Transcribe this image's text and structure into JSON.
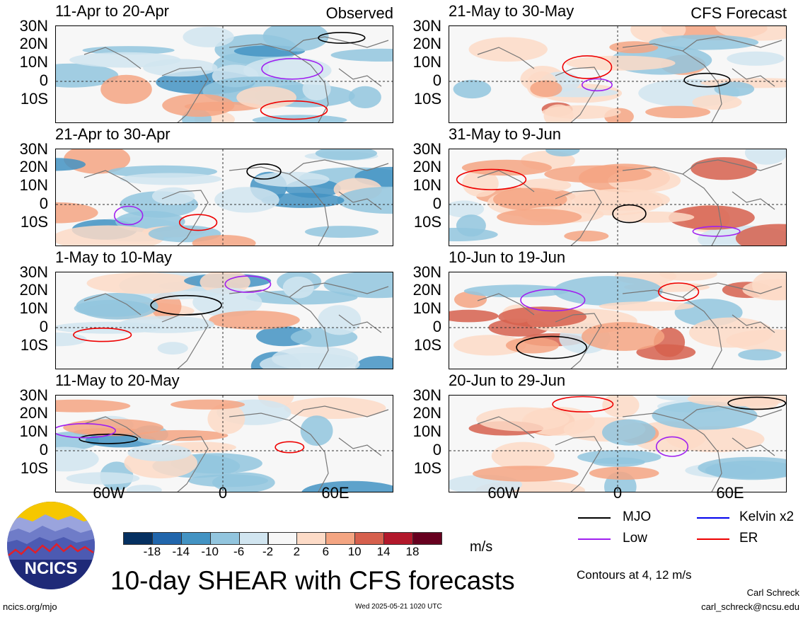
{
  "chart_data": {
    "type": "heatmap",
    "title": "10-day SHEAR with CFS forecasts",
    "columns": [
      "Observed",
      "CFS Forecast"
    ],
    "lat_ticks": [
      "30N",
      "20N",
      "10N",
      "0",
      "10S"
    ],
    "lon_ticks": [
      "60W",
      "0",
      "60E"
    ],
    "panels": [
      {
        "period": "11-Apr to 20-Apr",
        "column": "Observed"
      },
      {
        "period": "21-Apr to 30-Apr",
        "column": "Observed"
      },
      {
        "period": "1-May to 10-May",
        "column": "Observed"
      },
      {
        "period": "11-May to 20-May",
        "column": "Observed"
      },
      {
        "period": "21-May to 30-May",
        "column": "CFS Forecast"
      },
      {
        "period": "31-May to 9-Jun",
        "column": "CFS Forecast"
      },
      {
        "period": "10-Jun to 19-Jun",
        "column": "CFS Forecast"
      },
      {
        "period": "20-Jun to 29-Jun",
        "column": "CFS Forecast"
      }
    ],
    "colorbar": {
      "labels": [
        "-18",
        "-14",
        "-10",
        "-6",
        "-2",
        "2",
        "6",
        "10",
        "14",
        "18"
      ],
      "colors": [
        "#053061",
        "#2166ac",
        "#4393c3",
        "#92c5de",
        "#d1e5f0",
        "#f7f7f7",
        "#fddbc7",
        "#f4a582",
        "#d6604d",
        "#b2182b",
        "#67001f"
      ],
      "units": "m/s"
    },
    "legend": [
      {
        "name": "MJO",
        "color": "#000000"
      },
      {
        "name": "Kelvin x2",
        "color": "#0000ee"
      },
      {
        "name": "Low",
        "color": "#a020f0"
      },
      {
        "name": "ER",
        "color": "#ee0000"
      }
    ],
    "contour_note": "Contours at 4, 12 m/s"
  },
  "footer": {
    "logo_text": "NCICS",
    "url": "ncics.org/mjo",
    "timestamp": "Wed 2025-05-21 1020 UTC",
    "author": "Carl Schreck",
    "email": "carl_schreck@ncsu.edu"
  }
}
